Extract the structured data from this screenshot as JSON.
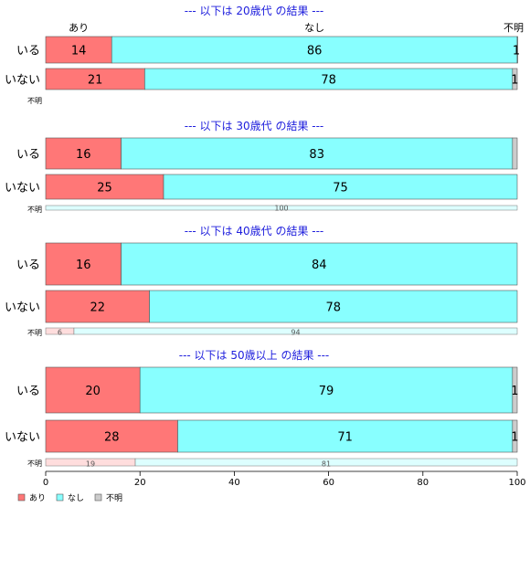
{
  "chart_data": {
    "type": "bar",
    "orientation": "horizontal",
    "stacked": true,
    "xlim": [
      0,
      100
    ],
    "x_ticks": [
      0,
      20,
      40,
      60,
      80,
      100
    ],
    "legend": {
      "placement": "bottom-left",
      "entries": [
        {
          "label": "あり",
          "color": "#ff7777"
        },
        {
          "label": "なし",
          "color": "#88ffff"
        },
        {
          "label": "不明",
          "color": "#cccccc"
        }
      ]
    },
    "top_column_labels": [
      "あり",
      "なし",
      "不明"
    ],
    "panels": [
      {
        "title": "--- 以下は 20歳代 の結果 ---",
        "rows": [
          {
            "label": "いる",
            "values": [
              14,
              86,
              1
            ],
            "value_labels": [
              "14",
              "86",
              "1"
            ]
          },
          {
            "label": "いない",
            "values": [
              21,
              78,
              1
            ],
            "value_labels": [
              "21",
              "78",
              "1"
            ]
          }
        ],
        "unknown": {
          "label": "不明",
          "values": [
            0,
            0,
            0
          ],
          "value_labels": [
            "",
            "",
            ""
          ]
        }
      },
      {
        "title": "--- 以下は 30歳代 の結果 ---",
        "rows": [
          {
            "label": "いる",
            "values": [
              16,
              83,
              1
            ],
            "value_labels": [
              "16",
              "83",
              ""
            ]
          },
          {
            "label": "いない",
            "values": [
              25,
              75,
              0
            ],
            "value_labels": [
              "25",
              "75",
              ""
            ]
          }
        ],
        "unknown": {
          "label": "不明",
          "values": [
            0,
            100,
            0
          ],
          "value_labels": [
            "",
            "100",
            ""
          ]
        }
      },
      {
        "title": "--- 以下は 40歳代 の結果 ---",
        "rows": [
          {
            "label": "いる",
            "values": [
              16,
              84,
              0
            ],
            "value_labels": [
              "16",
              "84",
              ""
            ]
          },
          {
            "label": "いない",
            "values": [
              22,
              78,
              0
            ],
            "value_labels": [
              "22",
              "78",
              ""
            ]
          }
        ],
        "unknown": {
          "label": "不明",
          "values": [
            6,
            94,
            0
          ],
          "value_labels": [
            "6",
            "94",
            ""
          ]
        }
      },
      {
        "title": "--- 以下は 50歳以上 の結果 ---",
        "rows": [
          {
            "label": "いる",
            "values": [
              20,
              79,
              1
            ],
            "value_labels": [
              "20",
              "79",
              "1"
            ]
          },
          {
            "label": "いない",
            "values": [
              28,
              71,
              1
            ],
            "value_labels": [
              "28",
              "71",
              "1"
            ]
          }
        ],
        "unknown": {
          "label": "不明",
          "values": [
            19,
            81,
            0
          ],
          "value_labels": [
            "19",
            "81",
            ""
          ]
        }
      }
    ]
  }
}
